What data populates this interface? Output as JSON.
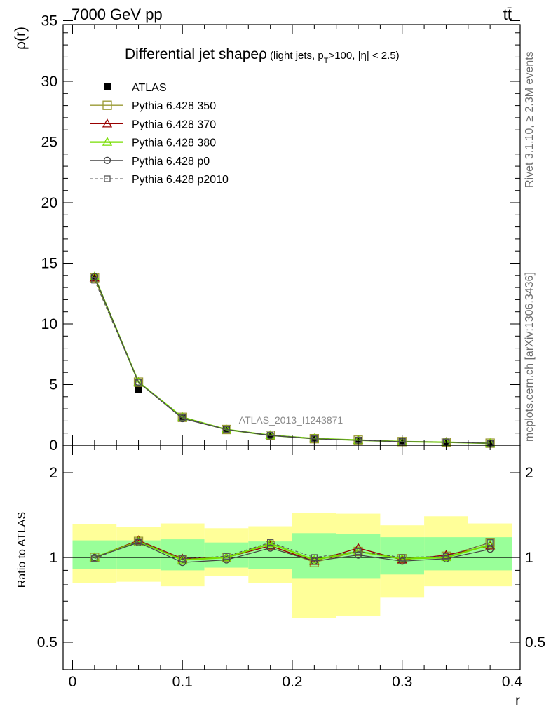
{
  "header": {
    "energy_label": "7000 GeV pp",
    "process_label": "tt̄"
  },
  "side_labels": {
    "rivet": "Rivet 3.1.10, ≥ 2.3M events",
    "mcplots": "mcplots.cern.ch [arXiv:1306.3436]"
  },
  "watermark": "ATLAS_2013_I1243871",
  "colors": {
    "atlas": "#000000",
    "p350": "#999933",
    "p370": "#990000",
    "p380": "#77dd00",
    "p0": "#444444",
    "p2010": "#555555",
    "band_syst": "#ffff99",
    "band_stat": "#99ff99"
  },
  "chart_data": [
    {
      "type": "line",
      "title": "Differential jet shapeρ",
      "title_sub": "(light jets, p",
      "title_sub_index": "T",
      "title_sub_rest": ">100, |η| < 2.5)",
      "xlabel": "",
      "ylabel": "ρ(r)",
      "xlim": [
        0,
        0.4
      ],
      "ylim": [
        0,
        35
      ],
      "y_ticks": [
        "0",
        "5",
        "10",
        "15",
        "20",
        "25",
        "30",
        "35"
      ],
      "legend_position": "top-left",
      "x": [
        0.02,
        0.06,
        0.1,
        0.14,
        0.18,
        0.22,
        0.26,
        0.3,
        0.34,
        0.38
      ],
      "series": [
        {
          "name": "ATLAS",
          "values": [
            13.8,
            4.6,
            2.3,
            1.3,
            0.75,
            0.55,
            0.4,
            0.3,
            0.25,
            0.15
          ]
        },
        {
          "name": "Pythia 6.428 350",
          "values": [
            13.8,
            5.2,
            2.3,
            1.3,
            0.82,
            0.54,
            0.42,
            0.3,
            0.25,
            0.17
          ]
        },
        {
          "name": "Pythia 6.428 370",
          "values": [
            13.8,
            5.2,
            2.3,
            1.3,
            0.82,
            0.55,
            0.43,
            0.3,
            0.26,
            0.16
          ]
        },
        {
          "name": "Pythia 6.428 380",
          "values": [
            13.9,
            5.2,
            2.3,
            1.3,
            0.82,
            0.55,
            0.42,
            0.3,
            0.25,
            0.16
          ]
        },
        {
          "name": "Pythia 6.428 p0",
          "values": [
            13.9,
            5.2,
            2.2,
            1.3,
            0.8,
            0.53,
            0.41,
            0.29,
            0.25,
            0.16
          ]
        },
        {
          "name": "Pythia 6.428 p2010",
          "values": [
            13.6,
            5.2,
            2.3,
            1.3,
            0.84,
            0.55,
            0.42,
            0.3,
            0.25,
            0.17
          ]
        }
      ]
    },
    {
      "type": "line",
      "title": "",
      "xlabel": "r",
      "ylabel": "Ratio to ATLAS",
      "xlim": [
        0,
        0.4
      ],
      "ylim": [
        0.35,
        2.3
      ],
      "y_ticks": [
        "0.5",
        "1",
        "2"
      ],
      "x_ticks": [
        "0",
        "0.1",
        "0.2",
        "0.3",
        "0.4"
      ],
      "x": [
        0.02,
        0.06,
        0.1,
        0.14,
        0.18,
        0.22,
        0.26,
        0.3,
        0.34,
        0.38
      ],
      "x_edges": [
        0,
        0.04,
        0.08,
        0.12,
        0.16,
        0.2,
        0.24,
        0.28,
        0.32,
        0.36,
        0.4
      ],
      "band_stat": {
        "lo": [
          0.91,
          0.91,
          0.9,
          0.92,
          0.91,
          0.84,
          0.84,
          0.87,
          0.9,
          0.9
        ],
        "hi": [
          1.15,
          1.15,
          1.16,
          1.13,
          1.14,
          1.22,
          1.21,
          1.18,
          1.18,
          1.18
        ]
      },
      "band_syst": {
        "lo": [
          0.81,
          0.82,
          0.79,
          0.86,
          0.81,
          0.61,
          0.62,
          0.72,
          0.79,
          0.79
        ],
        "hi": [
          1.31,
          1.28,
          1.32,
          1.27,
          1.29,
          1.44,
          1.43,
          1.3,
          1.4,
          1.32
        ]
      },
      "series": [
        {
          "name": "Pythia 6.428 350",
          "values": [
            1.0,
            1.14,
            0.98,
            1.0,
            1.1,
            0.96,
            1.05,
            0.99,
            1.01,
            1.13
          ]
        },
        {
          "name": "Pythia 6.428 370",
          "values": [
            1.0,
            1.15,
            0.99,
            1.0,
            1.1,
            0.97,
            1.08,
            0.98,
            1.02,
            1.1
          ]
        },
        {
          "name": "Pythia 6.428 380",
          "values": [
            1.0,
            1.14,
            0.98,
            1.0,
            1.12,
            0.98,
            1.05,
            0.99,
            1.0,
            1.11
          ]
        },
        {
          "name": "Pythia 6.428 p0",
          "values": [
            1.0,
            1.13,
            0.96,
            0.98,
            1.08,
            0.97,
            1.02,
            0.97,
            0.99,
            1.07
          ]
        },
        {
          "name": "Pythia 6.428 p2010",
          "values": [
            0.99,
            1.14,
            0.99,
            1.01,
            1.13,
            1.0,
            1.05,
            1.0,
            1.01,
            1.13
          ]
        }
      ]
    }
  ]
}
